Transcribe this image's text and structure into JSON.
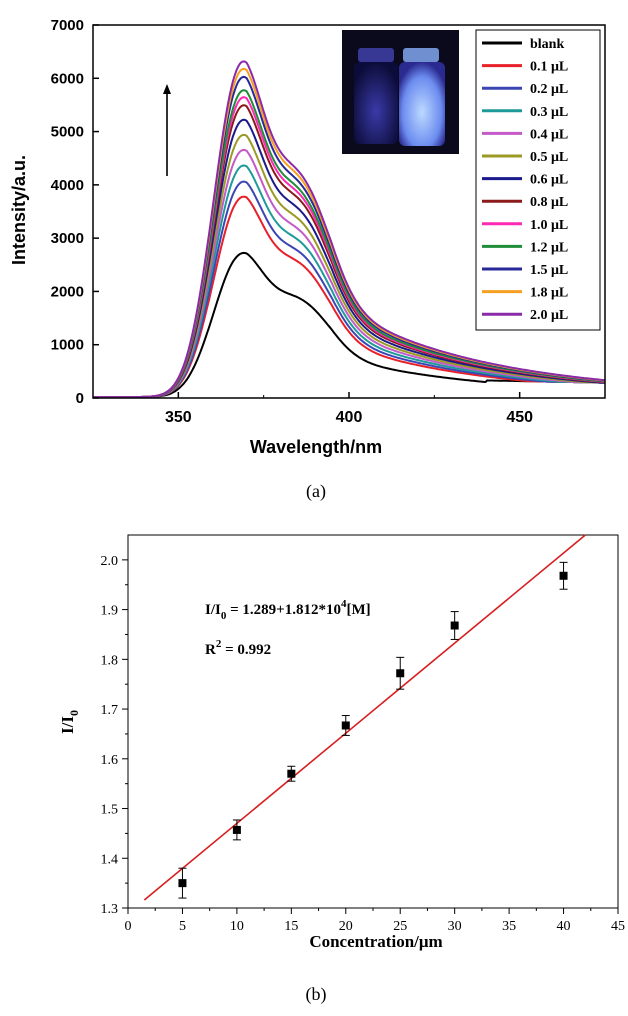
{
  "colors": {
    "blank": "#000000",
    "s01": "#e8202a",
    "s02": "#3b46b4",
    "s03": "#1f9a9a",
    "s04": "#c35ac8",
    "s05": "#9a9a24",
    "s06": "#1a1a8c",
    "s07": "#8c1a1a",
    "s10": "#ff2ab4",
    "s12": "#1f8c3a",
    "s15": "#28289a",
    "s18": "#f5a020",
    "s20": "#8a2aa8",
    "fit": "#d81e1e"
  },
  "icons": {
    "arrow": "up-arrow-icon",
    "photo": "vials-photo"
  },
  "chart_data": [
    {
      "type": "line",
      "label": "(a)",
      "xlabel": "Wavelength/nm",
      "ylabel": "Intensity/a.u.",
      "xlim": [
        325,
        475
      ],
      "ylim": [
        0,
        7000
      ],
      "xticks": [
        350,
        400,
        450
      ],
      "yticks": [
        0,
        1000,
        2000,
        3000,
        4000,
        5000,
        6000,
        7000
      ],
      "legend_position": "top-right",
      "grid": false,
      "series": [
        {
          "name": "blank",
          "peak": 2700,
          "shoulder": 2350
        },
        {
          "name": "0.1 μL",
          "peak": 3750,
          "shoulder": 3130
        },
        {
          "name": "0.2 μL",
          "peak": 4030,
          "shoulder": 3390
        },
        {
          "name": "0.3 μL",
          "peak": 4330,
          "shoulder": 3650
        },
        {
          "name": "0.4 μL",
          "peak": 4620,
          "shoulder": 3910
        },
        {
          "name": "0.5 μL",
          "peak": 4900,
          "shoulder": 4150
        },
        {
          "name": "0.6 μL",
          "peak": 5180,
          "shoulder": 4390
        },
        {
          "name": "0.8 μL",
          "peak": 5450,
          "shoulder": 4630
        },
        {
          "name": "1.0 μL",
          "peak": 5600,
          "shoulder": 4760
        },
        {
          "name": "1.2 μL",
          "peak": 5730,
          "shoulder": 4870
        },
        {
          "name": "1.5 μL",
          "peak": 5980,
          "shoulder": 4990
        },
        {
          "name": "1.8 μL",
          "peak": 6130,
          "shoulder": 5120
        },
        {
          "name": "2.0 μL",
          "peak": 6270,
          "shoulder": 5220
        }
      ]
    },
    {
      "type": "scatter",
      "label": "(b)",
      "xlabel": "Concentration/μm",
      "ylabel_main": "I/I",
      "ylabel_sub": "0",
      "xlim": [
        0,
        45
      ],
      "ylim": [
        1.3,
        2.05
      ],
      "xticks": [
        0,
        5,
        10,
        15,
        20,
        25,
        30,
        35,
        40,
        45
      ],
      "yticks": [
        1.3,
        1.4,
        1.5,
        1.6,
        1.7,
        1.8,
        1.9,
        2.0
      ],
      "points": [
        {
          "x": 5,
          "y": 1.35,
          "err": 0.03
        },
        {
          "x": 10,
          "y": 1.457,
          "err": 0.02
        },
        {
          "x": 15,
          "y": 1.57,
          "err": 0.015
        },
        {
          "x": 20,
          "y": 1.667,
          "err": 0.02
        },
        {
          "x": 25,
          "y": 1.772,
          "err": 0.032
        },
        {
          "x": 30,
          "y": 1.868,
          "err": 0.028
        },
        {
          "x": 40,
          "y": 1.968,
          "err": 0.027
        }
      ],
      "fit": {
        "intercept": 1.289,
        "slope": 0.01812,
        "x_range": [
          1.5,
          42
        ]
      },
      "equation": {
        "lhs_main": "I/I",
        "lhs_sub": "0",
        "rhs_main": " = 1.289+1.812*10",
        "rhs_sup": "4",
        "rhs_tail": "[M]"
      },
      "r2": {
        "main": "R",
        "sup": "2",
        "tail": " = 0.992"
      }
    }
  ]
}
